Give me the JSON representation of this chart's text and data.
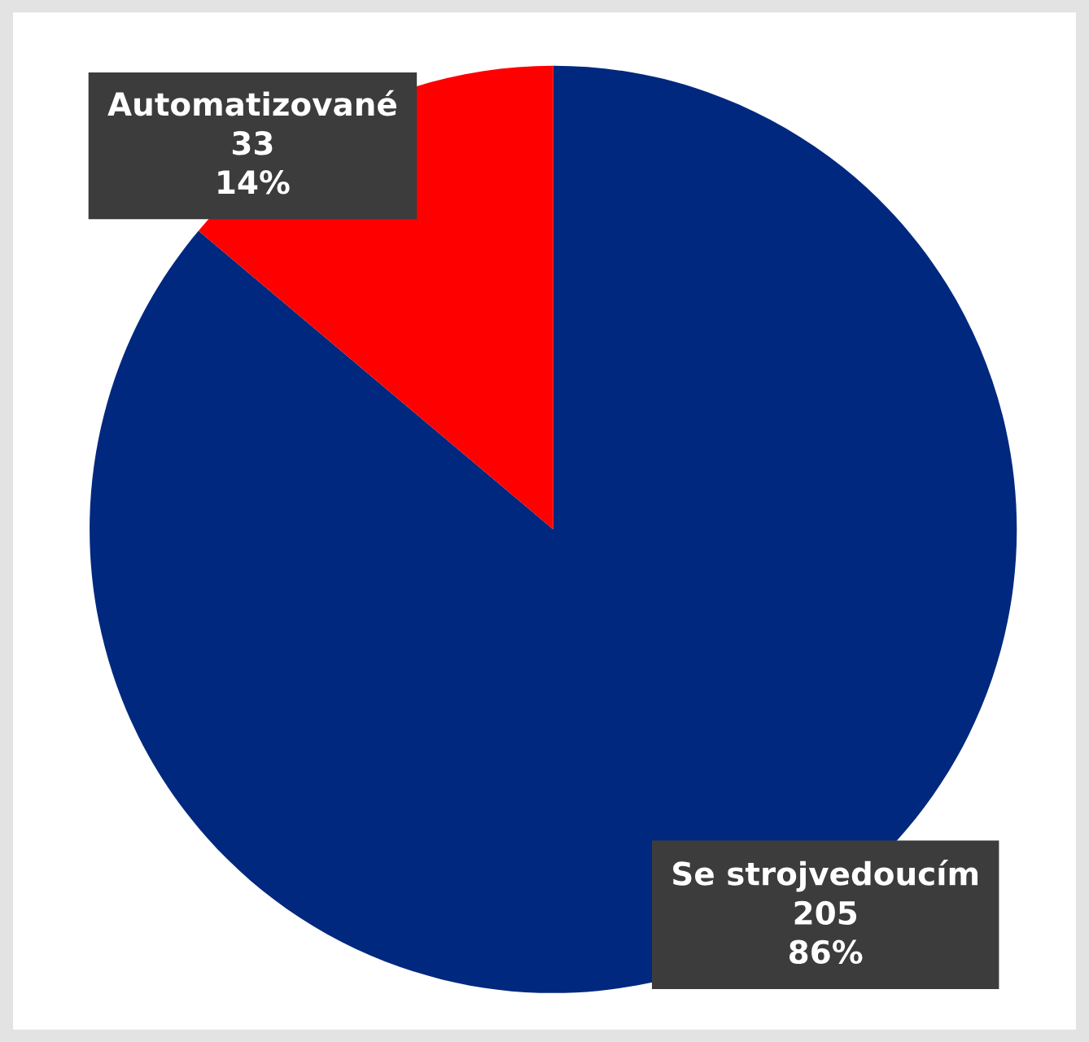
{
  "chart_data": {
    "type": "pie",
    "categories": [
      "Se strojvedoucím",
      "Automatizované"
    ],
    "values": [
      205,
      33
    ],
    "colors": [
      "#00287f",
      "#ff0000"
    ],
    "value_labels": [
      "205\n86%",
      "33\n14%"
    ],
    "legend": false
  }
}
